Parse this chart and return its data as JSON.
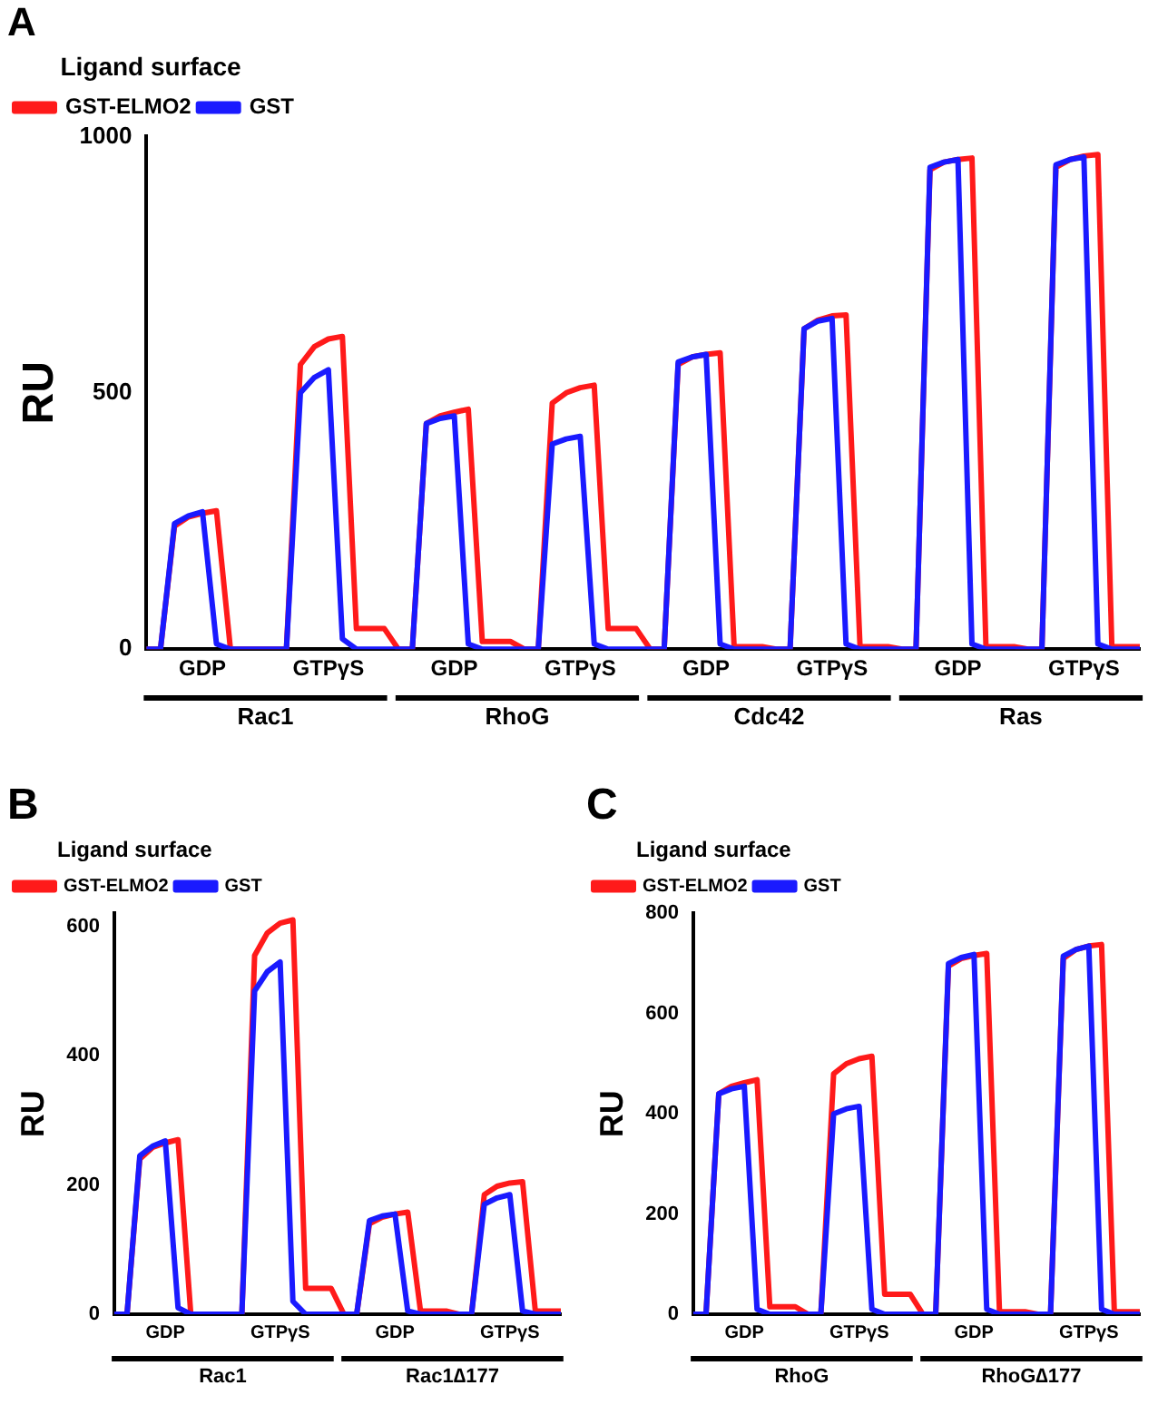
{
  "chart_data": [
    {
      "type": "line",
      "title": "A",
      "ylabel": "RU",
      "legend_title": "Ligand surface",
      "legend": "top left",
      "grid": false,
      "marker": "none",
      "line_style": "solid",
      "categories": [
        null,
        null,
        null,
        null,
        "GDP",
        null,
        null,
        null,
        null,
        null,
        null,
        null,
        null,
        "GTPγS",
        null,
        null,
        null,
        null,
        null,
        null,
        null,
        null,
        "GDP",
        null,
        null,
        null,
        null,
        null,
        null,
        null,
        null,
        "GTPγS",
        null,
        null,
        null,
        null,
        null,
        null,
        null,
        null,
        "GDP",
        null,
        null,
        null,
        null,
        null,
        null,
        null,
        null,
        "GTPγS",
        null,
        null,
        null,
        null,
        null,
        null,
        null,
        null,
        "GDP",
        null,
        null,
        null,
        null,
        null,
        null,
        null,
        null,
        "GTPγS",
        null,
        null,
        null,
        null
      ],
      "ylim": [
        0,
        1000
      ],
      "yticks": [
        0,
        500,
        1000
      ],
      "series": [
        {
          "name": "GST-ELMO2",
          "color": "#ff1a1a",
          "values": [
            0,
            0,
            240,
            258,
            265,
            270,
            0,
            0,
            0,
            0,
            0,
            555,
            590,
            605,
            610,
            40,
            40,
            40,
            0,
            0,
            440,
            455,
            462,
            468,
            15,
            15,
            15,
            0,
            0,
            480,
            500,
            510,
            515,
            40,
            40,
            40,
            0,
            0,
            555,
            570,
            575,
            578,
            5,
            5,
            5,
            0,
            0,
            625,
            642,
            650,
            652,
            5,
            5,
            5,
            0,
            0,
            935,
            950,
            955,
            958,
            5,
            5,
            5,
            0,
            0,
            940,
            955,
            962,
            965,
            5,
            5,
            5
          ]
        },
        {
          "name": "GST",
          "color": "#1a1aff",
          "values": [
            0,
            0,
            245,
            260,
            268,
            10,
            0,
            0,
            0,
            0,
            0,
            500,
            530,
            545,
            20,
            0,
            0,
            0,
            0,
            0,
            440,
            450,
            455,
            10,
            0,
            0,
            0,
            0,
            0,
            400,
            410,
            415,
            10,
            0,
            0,
            0,
            0,
            0,
            560,
            570,
            575,
            10,
            0,
            0,
            0,
            0,
            0,
            625,
            640,
            645,
            10,
            0,
            0,
            0,
            0,
            0,
            940,
            950,
            955,
            10,
            0,
            0,
            0,
            0,
            0,
            945,
            955,
            960,
            10,
            0,
            0,
            0
          ]
        }
      ],
      "annotations": [
        "Rac1",
        "RhoG",
        "Cdc42",
        "Ras"
      ]
    },
    {
      "type": "line",
      "title": "B",
      "ylabel": "RU",
      "legend_title": "Ligand surface",
      "legend": "top left",
      "grid": false,
      "marker": "none",
      "line_style": "solid",
      "categories": [
        null,
        null,
        null,
        null,
        "GDP",
        null,
        null,
        null,
        null,
        null,
        null,
        null,
        null,
        "GTPγS",
        null,
        null,
        null,
        null,
        null,
        null,
        null,
        null,
        "GDP",
        null,
        null,
        null,
        null,
        null,
        null,
        null,
        null,
        "GTPγS",
        null,
        null,
        null,
        null
      ],
      "ylim": [
        0,
        620
      ],
      "yticks": [
        0,
        200,
        400,
        600
      ],
      "series": [
        {
          "name": "GST-ELMO2",
          "color": "#ff1a1a",
          "values": [
            0,
            0,
            240,
            258,
            265,
            270,
            0,
            0,
            0,
            0,
            0,
            555,
            590,
            605,
            610,
            40,
            40,
            40,
            0,
            0,
            140,
            150,
            155,
            158,
            5,
            5,
            5,
            0,
            0,
            185,
            198,
            203,
            205,
            5,
            5,
            5
          ]
        },
        {
          "name": "GST",
          "color": "#1a1aff",
          "values": [
            0,
            0,
            245,
            260,
            268,
            10,
            0,
            0,
            0,
            0,
            0,
            500,
            530,
            545,
            20,
            0,
            0,
            0,
            0,
            0,
            145,
            152,
            155,
            5,
            0,
            0,
            0,
            0,
            0,
            170,
            180,
            185,
            5,
            0,
            0,
            0
          ]
        }
      ],
      "annotations": [
        "Rac1",
        "Rac1∆177"
      ]
    },
    {
      "type": "line",
      "title": "C",
      "ylabel": "RU",
      "legend_title": "Ligand surface",
      "legend": "top left",
      "grid": false,
      "marker": "none",
      "line_style": "solid",
      "categories": [
        null,
        null,
        null,
        null,
        "GDP",
        null,
        null,
        null,
        null,
        null,
        null,
        null,
        null,
        "GTPγS",
        null,
        null,
        null,
        null,
        null,
        null,
        null,
        null,
        "GDP",
        null,
        null,
        null,
        null,
        null,
        null,
        null,
        null,
        "GTPγS",
        null,
        null,
        null,
        null
      ],
      "ylim": [
        0,
        800
      ],
      "yticks": [
        0,
        200,
        400,
        600,
        800
      ],
      "series": [
        {
          "name": "GST-ELMO2",
          "color": "#ff1a1a",
          "values": [
            0,
            0,
            440,
            455,
            462,
            468,
            15,
            15,
            15,
            0,
            0,
            480,
            500,
            510,
            515,
            40,
            40,
            40,
            0,
            0,
            695,
            710,
            716,
            720,
            5,
            5,
            5,
            0,
            0,
            710,
            728,
            735,
            738,
            5,
            5,
            5
          ]
        },
        {
          "name": "GST",
          "color": "#1a1aff",
          "values": [
            0,
            0,
            440,
            450,
            455,
            10,
            0,
            0,
            0,
            0,
            0,
            400,
            410,
            415,
            10,
            0,
            0,
            0,
            0,
            0,
            700,
            712,
            718,
            10,
            0,
            0,
            0,
            0,
            0,
            715,
            728,
            735,
            10,
            0,
            0,
            0
          ]
        }
      ],
      "annotations": [
        "RhoG",
        "RhoG∆177"
      ]
    }
  ]
}
